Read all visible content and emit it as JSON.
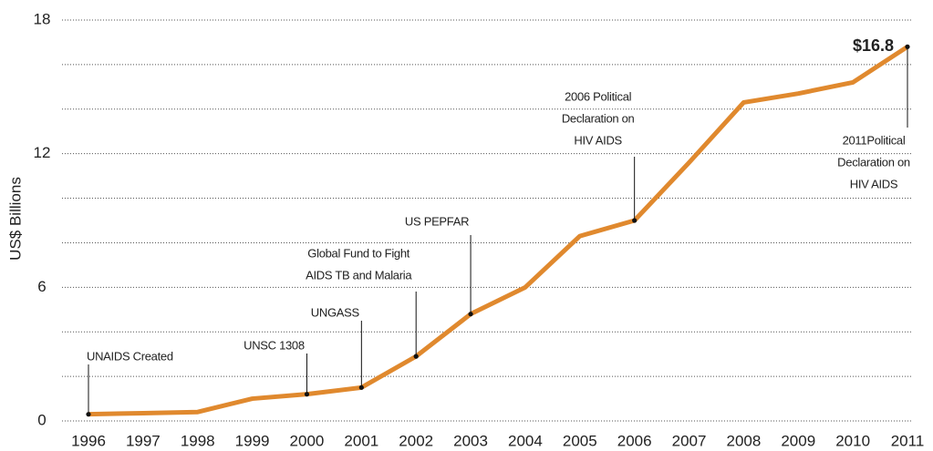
{
  "chart_data": {
    "type": "line",
    "ylabel": "US$ Billions",
    "categories": [
      "1996",
      "1997",
      "1998",
      "1999",
      "2000",
      "2001",
      "2002",
      "2003",
      "2004",
      "2005",
      "2006",
      "2007",
      "2008",
      "2009",
      "2010",
      "2011"
    ],
    "values": [
      0.3,
      0.35,
      0.4,
      1.0,
      1.2,
      1.5,
      2.9,
      4.8,
      6.0,
      8.3,
      9.0,
      11.6,
      14.3,
      14.7,
      15.2,
      16.8
    ],
    "value_labels": [
      null,
      null,
      null,
      null,
      null,
      null,
      null,
      null,
      null,
      null,
      null,
      null,
      null,
      null,
      null,
      "$16.8"
    ],
    "color": "#e0892e",
    "ylim": [
      0,
      18
    ],
    "yticks": [
      0,
      6,
      12,
      18
    ],
    "ygrid": [
      0,
      2,
      4,
      6,
      8,
      10,
      12,
      14,
      16,
      18
    ],
    "grid": true,
    "annotations": [
      {
        "x": "1996",
        "lines": [
          "UNAIDS Created"
        ]
      },
      {
        "x": "2000",
        "lines": [
          "UNSC 1308"
        ]
      },
      {
        "x": "2001",
        "lines": [
          "UNGASS"
        ]
      },
      {
        "x": "2002",
        "lines": [
          "Global Fund to Fight",
          "AIDS TB and Malaria"
        ]
      },
      {
        "x": "2003",
        "lines": [
          "US PEPFAR"
        ]
      },
      {
        "x": "2006",
        "lines": [
          "2006 Political",
          "Declaration on",
          "HIV AIDS"
        ]
      },
      {
        "x": "2011",
        "lines": [
          "2011Political",
          "Declaration on",
          "HIV AIDS"
        ]
      }
    ]
  }
}
